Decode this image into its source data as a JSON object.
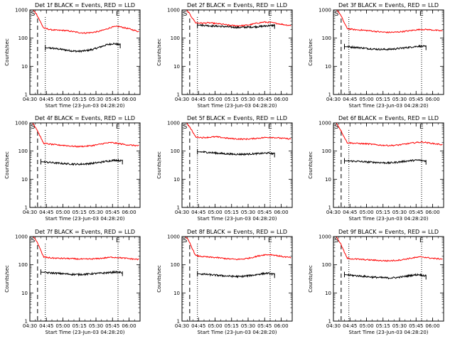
{
  "figure": {
    "background": "#ffffff",
    "events_color": "#000000",
    "lld_color": "#ff0000"
  },
  "chart_data": [
    {
      "type": "line",
      "title": "Det 1f BLACK = Events, RED = LLD",
      "xlabel": "Start Time (23-Jun-03 04:28:20)",
      "ylabel": "Counts/sec",
      "yscale": "log",
      "ylim": [
        1,
        1000
      ],
      "xlim": [
        "04:30",
        "06:10"
      ],
      "x_ticks": [
        "04:30",
        "04:45",
        "05:00",
        "05:15",
        "05:30",
        "05:45",
        "06:00"
      ],
      "y_ticks": [
        "1",
        "10",
        "100",
        "1000"
      ],
      "markers": [
        {
          "label": "S",
          "time": "04:33"
        },
        {
          "label": "E",
          "time": "05:50"
        }
      ],
      "dashed_line": "04:37",
      "dotted_lines": [
        "04:44",
        "05:50"
      ],
      "series": [
        {
          "key": "events",
          "range": [
            "04:44",
            "05:52"
          ],
          "values": [
            45,
            44,
            41,
            38,
            35,
            34,
            36,
            40,
            48,
            58,
            64,
            58
          ]
        },
        {
          "key": "lld",
          "range": [
            "04:30",
            "06:09"
          ],
          "values": [
            1400,
            700,
            230,
            200,
            190,
            188,
            175,
            160,
            152,
            158,
            170,
            200,
            245,
            260,
            230,
            200,
            170
          ]
        }
      ]
    },
    {
      "type": "line",
      "title": "Det 2f BLACK = Events, RED = LLD",
      "xlabel": "Start Time (23-Jun-03 04:28:20)",
      "ylabel": "Counts/sec",
      "yscale": "log",
      "ylim": [
        1,
        1000
      ],
      "xlim": [
        "04:30",
        "06:10"
      ],
      "x_ticks": [
        "04:30",
        "04:45",
        "05:00",
        "05:15",
        "05:30",
        "05:45",
        "06:00"
      ],
      "y_ticks": [
        "1",
        "10",
        "100",
        "1000"
      ],
      "markers": [
        {
          "label": "S",
          "time": "04:33"
        },
        {
          "label": "E",
          "time": "05:50"
        }
      ],
      "dashed_line": "04:37",
      "dotted_lines": [
        "04:44",
        "05:50"
      ],
      "series": [
        {
          "key": "events",
          "range": [
            "04:44",
            "05:54"
          ],
          "values": [
            290,
            285,
            270,
            265,
            255,
            245,
            240,
            245,
            250,
            260,
            275,
            285
          ]
        },
        {
          "key": "lld",
          "range": [
            "04:30",
            "06:09"
          ],
          "values": [
            1400,
            800,
            350,
            340,
            350,
            330,
            310,
            285,
            275,
            280,
            300,
            340,
            370,
            360,
            330,
            300,
            280
          ]
        }
      ]
    },
    {
      "type": "line",
      "title": "Det 3f BLACK = Events, RED = LLD",
      "xlabel": "Start Time (23-Jun-03 04:28:20)",
      "ylabel": "Counts/sec",
      "yscale": "log",
      "ylim": [
        1,
        1000
      ],
      "xlim": [
        "04:30",
        "06:10"
      ],
      "x_ticks": [
        "04:30",
        "04:45",
        "05:00",
        "05:15",
        "05:30",
        "05:45",
        "06:00"
      ],
      "y_ticks": [
        "1",
        "10",
        "100",
        "1000"
      ],
      "markers": [
        {
          "label": "S",
          "time": "04:33"
        },
        {
          "label": "E",
          "time": "05:50"
        }
      ],
      "dashed_line": "04:37",
      "dotted_lines": [
        "04:44",
        "05:50"
      ],
      "series": [
        {
          "key": "events",
          "range": [
            "04:40",
            "05:54"
          ],
          "values": [
            50,
            48,
            46,
            43,
            41,
            40,
            40,
            42,
            45,
            48,
            52,
            50
          ]
        },
        {
          "key": "lld",
          "range": [
            "04:30",
            "06:09"
          ],
          "values": [
            1400,
            700,
            220,
            200,
            195,
            185,
            175,
            165,
            160,
            162,
            170,
            180,
            195,
            205,
            200,
            190,
            180
          ]
        }
      ]
    },
    {
      "type": "line",
      "title": "Det 4f BLACK = Events, RED = LLD",
      "xlabel": "Start Time (23-Jun-03 04:28:20)",
      "ylabel": "Counts/sec",
      "yscale": "log",
      "ylim": [
        1,
        1000
      ],
      "xlim": [
        "04:30",
        "06:10"
      ],
      "x_ticks": [
        "04:30",
        "04:45",
        "05:00",
        "05:15",
        "05:30",
        "05:45",
        "06:00"
      ],
      "y_ticks": [
        "1",
        "10",
        "100",
        "1000"
      ],
      "markers": [
        {
          "label": "S",
          "time": "04:33"
        },
        {
          "label": "E",
          "time": "05:50"
        }
      ],
      "dashed_line": "04:37",
      "dotted_lines": [
        "04:44",
        "05:50"
      ],
      "series": [
        {
          "key": "events",
          "range": [
            "04:40",
            "05:54"
          ],
          "values": [
            42,
            40,
            38,
            36,
            35,
            34,
            35,
            37,
            40,
            44,
            48,
            45
          ]
        },
        {
          "key": "lld",
          "range": [
            "04:30",
            "06:09"
          ],
          "values": [
            1400,
            600,
            190,
            175,
            165,
            160,
            150,
            145,
            148,
            155,
            170,
            190,
            200,
            185,
            170,
            160,
            155
          ]
        }
      ]
    },
    {
      "type": "line",
      "title": "Det 5f BLACK = Events, RED = LLD",
      "xlabel": "Start Time (23-Jun-03 04:28:20)",
      "ylabel": "Counts/sec",
      "yscale": "log",
      "ylim": [
        1,
        1000
      ],
      "xlim": [
        "04:30",
        "06:10"
      ],
      "x_ticks": [
        "04:30",
        "04:45",
        "05:00",
        "05:15",
        "05:30",
        "05:45",
        "06:00"
      ],
      "y_ticks": [
        "1",
        "10",
        "100",
        "1000"
      ],
      "markers": [
        {
          "label": "S",
          "time": "04:33"
        },
        {
          "label": "E",
          "time": "05:50"
        }
      ],
      "dashed_line": "04:37",
      "dotted_lines": [
        "04:44",
        "05:50"
      ],
      "series": [
        {
          "key": "events",
          "range": [
            "04:44",
            "05:54"
          ],
          "values": [
            95,
            92,
            88,
            84,
            80,
            78,
            77,
            78,
            80,
            82,
            86,
            80
          ]
        },
        {
          "key": "lld",
          "range": [
            "04:30",
            "06:09"
          ],
          "values": [
            1400,
            800,
            320,
            300,
            310,
            320,
            300,
            280,
            270,
            265,
            270,
            285,
            300,
            310,
            295,
            280,
            270
          ]
        }
      ]
    },
    {
      "type": "line",
      "title": "Det 6f BLACK = Events, RED = LLD",
      "xlabel": "Start Time (23-Jun-03 04:28:20)",
      "ylabel": "Counts/sec",
      "yscale": "log",
      "ylim": [
        1,
        1000
      ],
      "xlim": [
        "04:30",
        "06:10"
      ],
      "x_ticks": [
        "04:30",
        "04:45",
        "05:00",
        "05:15",
        "05:30",
        "05:45",
        "06:00"
      ],
      "y_ticks": [
        "1",
        "10",
        "100",
        "1000"
      ],
      "markers": [
        {
          "label": "S",
          "time": "04:33"
        },
        {
          "label": "E",
          "time": "05:50"
        }
      ],
      "dashed_line": "04:37",
      "dotted_lines": [
        "04:44",
        "05:50"
      ],
      "series": [
        {
          "key": "events",
          "range": [
            "04:40",
            "05:54"
          ],
          "values": [
            45,
            44,
            43,
            41,
            40,
            39,
            38,
            40,
            43,
            46,
            48,
            44
          ]
        },
        {
          "key": "lld",
          "range": [
            "04:30",
            "06:09"
          ],
          "values": [
            1400,
            600,
            200,
            190,
            185,
            180,
            170,
            162,
            158,
            160,
            170,
            185,
            200,
            210,
            195,
            180,
            170
          ]
        }
      ]
    },
    {
      "type": "line",
      "title": "Det 7f BLACK = Events, RED = LLD",
      "xlabel": "Start Time (23-Jun-03 04:28:20)",
      "ylabel": "Counts/sec",
      "yscale": "log",
      "ylim": [
        1,
        1000
      ],
      "xlim": [
        "04:30",
        "06:10"
      ],
      "x_ticks": [
        "04:30",
        "04:45",
        "05:00",
        "05:15",
        "05:30",
        "05:45",
        "06:00"
      ],
      "y_ticks": [
        "1",
        "10",
        "100",
        "1000"
      ],
      "markers": [
        {
          "label": "S",
          "time": "04:33"
        },
        {
          "label": "E",
          "time": "05:50"
        }
      ],
      "dashed_line": "04:37",
      "dotted_lines": [
        "04:44",
        "05:50"
      ],
      "series": [
        {
          "key": "events",
          "range": [
            "04:40",
            "05:54"
          ],
          "values": [
            55,
            52,
            50,
            48,
            46,
            45,
            46,
            48,
            50,
            52,
            55,
            53
          ]
        },
        {
          "key": "lld",
          "range": [
            "04:30",
            "06:09"
          ],
          "values": [
            1400,
            700,
            190,
            175,
            170,
            168,
            165,
            160,
            158,
            160,
            165,
            175,
            185,
            180,
            170,
            160,
            155
          ]
        }
      ]
    },
    {
      "type": "line",
      "title": "Det 8f BLACK = Events, RED = LLD",
      "xlabel": "Start Time (23-Jun-03 04:28:20)",
      "ylabel": "Counts/sec",
      "yscale": "log",
      "ylim": [
        1,
        1000
      ],
      "xlim": [
        "04:30",
        "06:10"
      ],
      "x_ticks": [
        "04:30",
        "04:45",
        "05:00",
        "05:15",
        "05:30",
        "05:45",
        "06:00"
      ],
      "y_ticks": [
        "1",
        "10",
        "100",
        "1000"
      ],
      "markers": [
        {
          "label": "S",
          "time": "04:33"
        },
        {
          "label": "E",
          "time": "05:50"
        }
      ],
      "dashed_line": "04:37",
      "dotted_lines": [
        "04:44",
        "05:50"
      ],
      "series": [
        {
          "key": "events",
          "range": [
            "04:44",
            "05:54"
          ],
          "values": [
            48,
            46,
            44,
            42,
            40,
            39,
            38,
            40,
            43,
            47,
            50,
            45
          ]
        },
        {
          "key": "lld",
          "range": [
            "04:30",
            "06:09"
          ],
          "values": [
            1400,
            700,
            210,
            195,
            185,
            180,
            170,
            160,
            155,
            160,
            175,
            200,
            225,
            230,
            210,
            190,
            180
          ]
        }
      ]
    },
    {
      "type": "line",
      "title": "Det 9f BLACK = Events, RED = LLD",
      "xlabel": "Start Time (23-Jun-03 04:28:20)",
      "ylabel": "Counts/sec",
      "yscale": "log",
      "ylim": [
        1,
        1000
      ],
      "xlim": [
        "04:30",
        "06:10"
      ],
      "x_ticks": [
        "04:30",
        "04:45",
        "05:00",
        "05:15",
        "05:30",
        "05:45",
        "06:00"
      ],
      "y_ticks": [
        "1",
        "10",
        "100",
        "1000"
      ],
      "markers": [
        {
          "label": "S",
          "time": "04:33"
        },
        {
          "label": "E",
          "time": "05:50"
        }
      ],
      "dashed_line": "04:37",
      "dotted_lines": [
        "04:44",
        "05:50"
      ],
      "series": [
        {
          "key": "events",
          "range": [
            "04:40",
            "05:54"
          ],
          "values": [
            45,
            42,
            40,
            38,
            36,
            35,
            34,
            35,
            38,
            42,
            45,
            40
          ]
        },
        {
          "key": "lld",
          "range": [
            "04:30",
            "06:09"
          ],
          "values": [
            1400,
            600,
            170,
            160,
            155,
            150,
            145,
            140,
            138,
            142,
            150,
            165,
            180,
            190,
            175,
            165,
            160
          ]
        }
      ]
    }
  ]
}
